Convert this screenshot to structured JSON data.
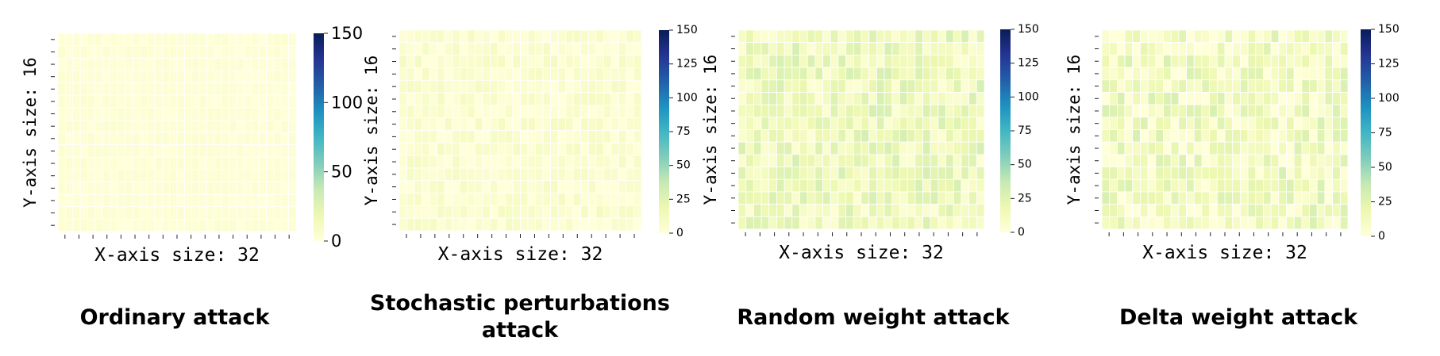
{
  "chart_data": [
    {
      "type": "heatmap",
      "caption": "Ordinary attack",
      "xlabel": "X-axis size: 32",
      "ylabel": "Y-axis size: 16",
      "grid_cols": 32,
      "grid_rows": 16,
      "value_range": [
        0,
        150
      ],
      "colorbar_ticks": [
        0,
        50,
        100,
        150
      ],
      "colormap": [
        "#ffffd9",
        "#edf8b1",
        "#c7e9b4",
        "#7fcdbb",
        "#41b6c4",
        "#1d91c0",
        "#225ea8",
        "#253494",
        "#081d58"
      ],
      "base_level": 2,
      "level_spread": 2,
      "seed": 11
    },
    {
      "type": "heatmap",
      "caption": "Stochastic perturbations attack",
      "xlabel": "X-axis size: 32",
      "ylabel": "Y-axis size: 16",
      "grid_cols": 32,
      "grid_rows": 16,
      "value_range": [
        0,
        150
      ],
      "colorbar_ticks": [
        0,
        25,
        50,
        75,
        100,
        125,
        150
      ],
      "colormap": [
        "#ffffd9",
        "#edf8b1",
        "#c7e9b4",
        "#7fcdbb",
        "#41b6c4",
        "#1d91c0",
        "#225ea8",
        "#253494",
        "#081d58"
      ],
      "base_level": 5,
      "level_spread": 6,
      "seed": 23
    },
    {
      "type": "heatmap",
      "caption": "Random weight attack",
      "xlabel": "X-axis size: 32",
      "ylabel": "Y-axis size: 16",
      "grid_cols": 32,
      "grid_rows": 16,
      "value_range": [
        0,
        150
      ],
      "colorbar_ticks": [
        0,
        25,
        50,
        75,
        100,
        125,
        150
      ],
      "colormap": [
        "#ffffd9",
        "#edf8b1",
        "#c7e9b4",
        "#7fcdbb",
        "#41b6c4",
        "#1d91c0",
        "#225ea8",
        "#253494",
        "#081d58"
      ],
      "base_level": 16,
      "level_spread": 14,
      "seed": 37
    },
    {
      "type": "heatmap",
      "caption": "Delta weight attack",
      "xlabel": "X-axis size: 32",
      "ylabel": "Y-axis size: 16",
      "grid_cols": 32,
      "grid_rows": 16,
      "value_range": [
        0,
        150
      ],
      "colorbar_ticks": [
        0,
        25,
        50,
        75,
        100,
        125,
        150
      ],
      "colormap": [
        "#ffffd9",
        "#edf8b1",
        "#c7e9b4",
        "#7fcdbb",
        "#41b6c4",
        "#1d91c0",
        "#225ea8",
        "#253494",
        "#081d58"
      ],
      "base_level": 13,
      "level_spread": 16,
      "seed": 53
    }
  ]
}
